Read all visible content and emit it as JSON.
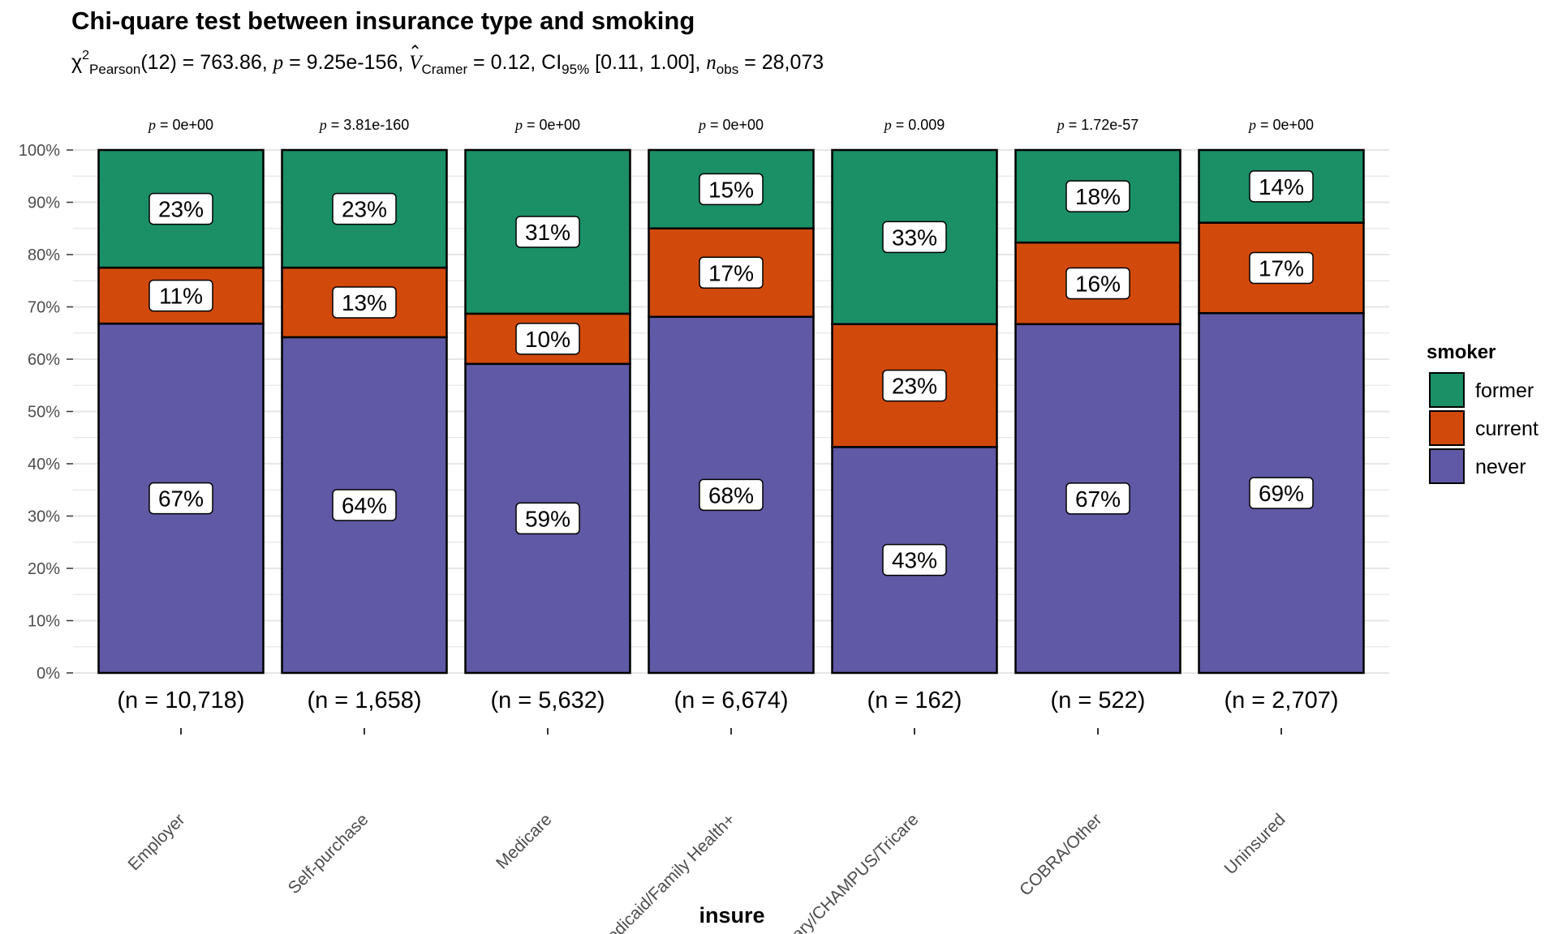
{
  "title": "Chi-quare test between insurance type and smoking",
  "subtitle": {
    "chi_symbol": "χ",
    "chi_sup": "2",
    "chi_sub": "Pearson",
    "df_text": "(12) = 763.86, ",
    "p_symbol": "p",
    "p_text": " = 9.25e-156, ",
    "v_symbol": "V",
    "v_sub": "Cramer",
    "v_text": " = 0.12, CI",
    "ci_sub": "95%",
    "ci_text": " [0.11, 1.00], ",
    "n_symbol": "n",
    "n_sub": "obs",
    "n_text": " = 28,073"
  },
  "colors": {
    "former": "#1B9066",
    "current": "#D14A0C",
    "never": "#6059A5",
    "grid": "#E6E6E6"
  },
  "chart_data": {
    "type": "bar",
    "stacked": true,
    "percent": true,
    "categories": [
      "Employer",
      "Self-purchase",
      "Medicare",
      "Medicaid/Family Health+",
      "TriCare/Military/CHAMPUS/Tricare",
      "COBRA/Other",
      "Uninsured"
    ],
    "series": [
      {
        "name": "never",
        "values": [
          67,
          64,
          59,
          68,
          43,
          67,
          69
        ]
      },
      {
        "name": "current",
        "values": [
          11,
          13,
          10,
          17,
          23,
          16,
          17
        ]
      },
      {
        "name": "former",
        "values": [
          23,
          23,
          31,
          15,
          33,
          18,
          14
        ]
      }
    ],
    "stack_boundaries": {
      "never_top": [
        66.8,
        64.2,
        59.1,
        68.1,
        43.2,
        66.7,
        68.8
      ],
      "current_top": [
        77.5,
        77.5,
        68.7,
        85.0,
        66.7,
        82.3,
        86.1
      ]
    },
    "p_values": [
      "0e+00",
      "3.81e-160",
      "0e+00",
      "0e+00",
      "0.009",
      "1.72e-57",
      "0e+00"
    ],
    "n_labels": [
      "(n = 10,718)",
      "(n = 1,658)",
      "(n = 5,632)",
      "(n = 6,674)",
      "(n = 162)",
      "(n = 522)",
      "(n = 2,707)"
    ],
    "x_tick_labels": [
      "Employer",
      "Self-purchase",
      "Medicare",
      "Medicaid/Family Health+",
      "Military/CHAMPUS/Tricare",
      "COBRA/Other",
      "Uninsured"
    ],
    "y_ticks": [
      "0%",
      "10%",
      "20%",
      "30%",
      "40%",
      "50%",
      "60%",
      "70%",
      "80%",
      "90%",
      "100%"
    ],
    "ylim": [
      0,
      100
    ],
    "xlabel": "insure",
    "ylabel": "",
    "legend": {
      "title": "smoker",
      "items": [
        "former",
        "current",
        "never"
      ],
      "position": "right"
    },
    "grid": true
  }
}
